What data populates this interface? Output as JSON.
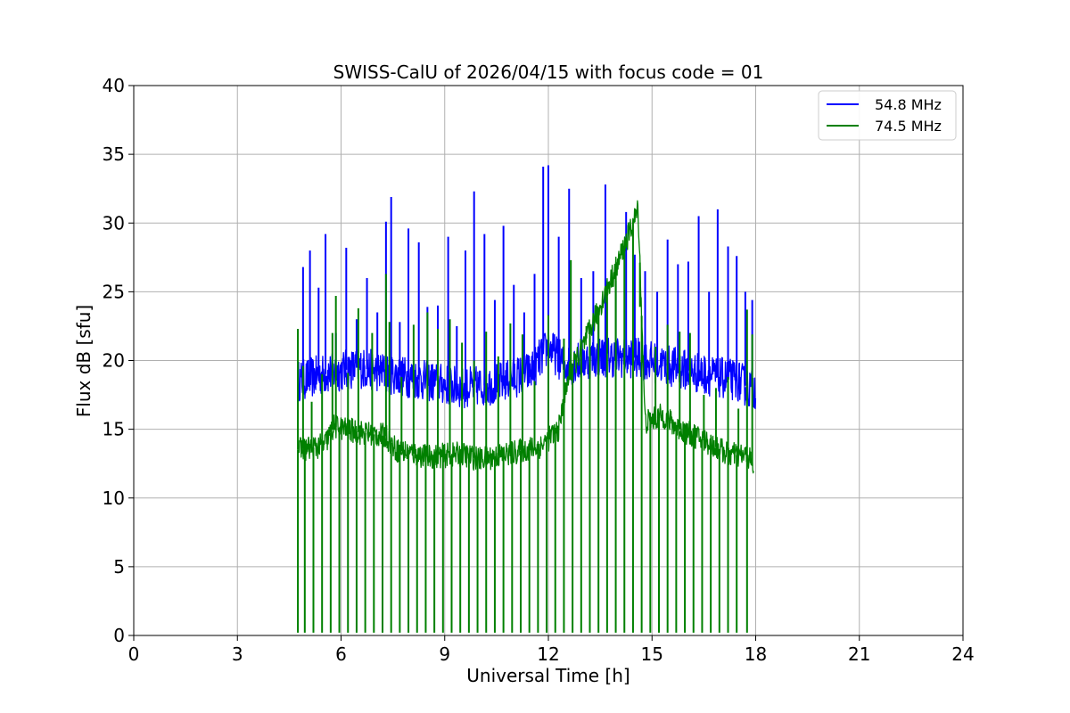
{
  "chart_data": {
    "type": "line",
    "title": "SWISS-CalU of 2026/04/15 with focus code = 01",
    "xlabel": "Universal Time [h]",
    "ylabel": "Flux dB [sfu]",
    "xlim": [
      0,
      24
    ],
    "ylim": [
      0,
      40
    ],
    "xticks": [
      0,
      3,
      6,
      9,
      12,
      15,
      18,
      21,
      24
    ],
    "yticks": [
      0,
      5,
      10,
      15,
      20,
      25,
      30,
      35,
      40
    ],
    "grid": true,
    "legend_position": "top-right",
    "series": [
      {
        "name": "54.8 MHz",
        "color": "#0000ff",
        "baseline": [
          [
            4.75,
            18.5
          ],
          [
            5.5,
            19.0
          ],
          [
            6.5,
            19.5
          ],
          [
            7.5,
            19.0
          ],
          [
            8.5,
            18.5
          ],
          [
            9.5,
            18.0
          ],
          [
            10.5,
            18.3
          ],
          [
            11.5,
            19.2
          ],
          [
            12.0,
            21.0
          ],
          [
            12.5,
            19.6
          ],
          [
            13.0,
            20.0
          ],
          [
            13.5,
            20.3
          ],
          [
            14.5,
            20.2
          ],
          [
            15.5,
            19.6
          ],
          [
            16.5,
            19.0
          ],
          [
            17.5,
            18.5
          ],
          [
            17.8,
            18.0
          ],
          [
            18.0,
            18.0
          ]
        ],
        "spikes": [
          [
            4.9,
            26.8
          ],
          [
            5.1,
            28.0
          ],
          [
            5.35,
            25.3
          ],
          [
            5.55,
            29.2
          ],
          [
            5.85,
            22.0
          ],
          [
            6.15,
            28.2
          ],
          [
            6.45,
            23.0
          ],
          [
            6.75,
            26.0
          ],
          [
            7.05,
            23.5
          ],
          [
            7.3,
            30.1
          ],
          [
            7.45,
            31.9
          ],
          [
            7.7,
            22.8
          ],
          [
            7.95,
            29.6
          ],
          [
            8.25,
            28.6
          ],
          [
            8.5,
            23.9
          ],
          [
            8.8,
            24.0
          ],
          [
            9.1,
            29.0
          ],
          [
            9.35,
            22.5
          ],
          [
            9.6,
            28.0
          ],
          [
            9.85,
            32.3
          ],
          [
            10.15,
            29.2
          ],
          [
            10.45,
            24.4
          ],
          [
            10.7,
            29.8
          ],
          [
            11.0,
            25.5
          ],
          [
            11.3,
            23.5
          ],
          [
            11.6,
            26.3
          ],
          [
            11.85,
            34.1
          ],
          [
            12.0,
            34.2
          ],
          [
            12.3,
            29.0
          ],
          [
            12.6,
            32.5
          ],
          [
            12.95,
            26.0
          ],
          [
            13.3,
            26.5
          ],
          [
            13.65,
            32.8
          ],
          [
            13.95,
            25.8
          ],
          [
            14.25,
            30.8
          ],
          [
            14.5,
            27.7
          ],
          [
            14.8,
            26.5
          ],
          [
            15.15,
            25.0
          ],
          [
            15.45,
            28.8
          ],
          [
            15.75,
            27.0
          ],
          [
            16.05,
            27.2
          ],
          [
            16.35,
            30.5
          ],
          [
            16.65,
            25.0
          ],
          [
            16.9,
            31.0
          ],
          [
            17.2,
            28.3
          ],
          [
            17.45,
            27.6
          ],
          [
            17.7,
            25.0
          ],
          [
            17.9,
            24.4
          ]
        ]
      },
      {
        "name": "74.5 MHz",
        "color": "#008000",
        "baseline": [
          [
            4.75,
            13.5
          ],
          [
            5.5,
            13.8
          ],
          [
            5.8,
            15.2
          ],
          [
            6.5,
            14.8
          ],
          [
            7.3,
            14.5
          ],
          [
            7.6,
            13.5
          ],
          [
            8.5,
            13.0
          ],
          [
            9.5,
            13.2
          ],
          [
            10.0,
            12.8
          ],
          [
            11.0,
            13.3
          ],
          [
            11.8,
            13.8
          ],
          [
            12.3,
            15.0
          ],
          [
            12.6,
            19.0
          ],
          [
            13.0,
            21.0
          ],
          [
            13.5,
            24.0
          ],
          [
            14.0,
            27.0
          ],
          [
            14.3,
            29.0
          ],
          [
            14.6,
            31.0
          ],
          [
            14.8,
            15.5
          ],
          [
            15.3,
            16.0
          ],
          [
            15.8,
            15.0
          ],
          [
            16.5,
            14.2
          ],
          [
            17.2,
            13.2
          ],
          [
            17.8,
            13.0
          ],
          [
            17.95,
            12.0
          ]
        ],
        "spikes": [
          [
            4.75,
            22.3
          ],
          [
            4.9,
            19.6
          ],
          [
            5.15,
            17.0
          ],
          [
            5.45,
            19.0
          ],
          [
            5.75,
            22.0
          ],
          [
            5.85,
            24.7
          ],
          [
            6.2,
            19.1
          ],
          [
            6.5,
            23.8
          ],
          [
            6.9,
            22.0
          ],
          [
            7.3,
            26.3
          ],
          [
            7.4,
            22.8
          ],
          [
            7.75,
            18.8
          ],
          [
            8.1,
            22.6
          ],
          [
            8.5,
            23.5
          ],
          [
            8.8,
            22.3
          ],
          [
            9.15,
            23.0
          ],
          [
            9.5,
            21.3
          ],
          [
            9.85,
            20.0
          ],
          [
            10.2,
            22.1
          ],
          [
            10.55,
            20.3
          ],
          [
            10.9,
            22.7
          ],
          [
            11.25,
            21.9
          ],
          [
            11.6,
            18.5
          ],
          [
            12.0,
            23.3
          ],
          [
            12.45,
            21.6
          ],
          [
            12.65,
            27.3
          ],
          [
            13.1,
            22.5
          ],
          [
            13.45,
            21.2
          ],
          [
            13.95,
            19.9
          ],
          [
            14.65,
            23.9
          ],
          [
            15.1,
            21.0
          ],
          [
            15.45,
            22.6
          ],
          [
            15.8,
            22.1
          ],
          [
            16.1,
            22.0
          ],
          [
            16.5,
            17.5
          ],
          [
            16.85,
            18.0
          ],
          [
            17.2,
            18.8
          ],
          [
            17.5,
            16.5
          ],
          [
            17.75,
            23.7
          ],
          [
            17.9,
            21.9
          ]
        ],
        "dips": [
          4.75,
          4.95,
          5.2,
          5.45,
          5.7,
          5.95,
          6.2,
          6.45,
          6.7,
          6.95,
          7.2,
          7.45,
          7.7,
          7.95,
          8.2,
          8.45,
          8.7,
          8.95,
          9.2,
          9.45,
          9.7,
          9.95,
          10.2,
          10.45,
          10.7,
          10.95,
          11.2,
          11.45,
          11.7,
          11.95,
          12.2,
          12.45,
          12.7,
          12.95,
          13.2,
          13.45,
          13.7,
          13.95,
          14.2,
          14.45,
          14.7,
          14.95,
          15.2,
          15.45,
          15.7,
          15.95,
          16.2,
          16.45,
          16.7,
          16.95,
          17.2,
          17.45,
          17.75
        ]
      }
    ]
  }
}
